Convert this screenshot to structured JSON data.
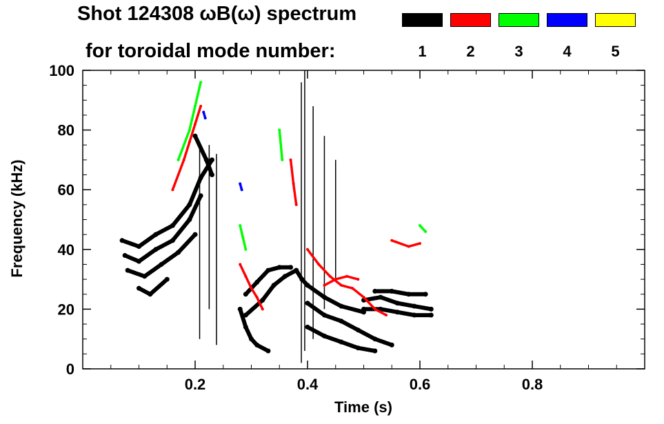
{
  "chart_data": {
    "type": "scatter",
    "title": "Shot 124308 ωB(ω) spectrum",
    "subtitle": "for toroidal mode number:",
    "xlabel": "Time (s)",
    "ylabel": "Frequency (kHz)",
    "xlim": [
      0.0,
      1.0
    ],
    "ylim": [
      0,
      100
    ],
    "xticks": [
      0.2,
      0.4,
      0.6,
      0.8
    ],
    "xtick_labels": [
      "0.2",
      "0.4",
      "0.6",
      "0.8"
    ],
    "yticks": [
      0,
      20,
      40,
      60,
      80,
      100
    ],
    "ytick_labels": [
      "0",
      "20",
      "40",
      "60",
      "80",
      "100"
    ],
    "legend": [
      {
        "label": "1",
        "color": "#000000"
      },
      {
        "label": "2",
        "color": "#ff0000"
      },
      {
        "label": "3",
        "color": "#00ff00"
      },
      {
        "label": "4",
        "color": "#0000ff"
      },
      {
        "label": "5",
        "color": "#ffff00"
      }
    ],
    "series": [
      {
        "name": "n=1",
        "color": "#000000",
        "segments": [
          [
            [
              0.07,
              43
            ],
            [
              0.1,
              41
            ],
            [
              0.13,
              45
            ],
            [
              0.16,
              48
            ],
            [
              0.19,
              55
            ],
            [
              0.21,
              64
            ],
            [
              0.23,
              70
            ]
          ],
          [
            [
              0.075,
              38
            ],
            [
              0.1,
              36
            ],
            [
              0.13,
              40
            ],
            [
              0.16,
              43
            ],
            [
              0.19,
              50
            ],
            [
              0.21,
              58
            ]
          ],
          [
            [
              0.08,
              33
            ],
            [
              0.11,
              31
            ],
            [
              0.14,
              35
            ],
            [
              0.17,
              39
            ],
            [
              0.2,
              45
            ]
          ],
          [
            [
              0.1,
              27
            ],
            [
              0.12,
              25
            ],
            [
              0.15,
              30
            ]
          ],
          [
            [
              0.28,
              20
            ],
            [
              0.29,
              14
            ],
            [
              0.3,
              10
            ],
            [
              0.31,
              8
            ],
            [
              0.33,
              6
            ]
          ],
          [
            [
              0.29,
              25
            ],
            [
              0.31,
              29
            ],
            [
              0.33,
              33
            ],
            [
              0.35,
              34
            ],
            [
              0.37,
              34
            ]
          ],
          [
            [
              0.29,
              18
            ],
            [
              0.32,
              23
            ],
            [
              0.34,
              28
            ],
            [
              0.36,
              31
            ],
            [
              0.38,
              33
            ]
          ],
          [
            [
              0.4,
              22
            ],
            [
              0.43,
              18
            ],
            [
              0.46,
              16
            ],
            [
              0.49,
              13
            ],
            [
              0.52,
              10
            ],
            [
              0.55,
              8
            ]
          ],
          [
            [
              0.4,
              14
            ],
            [
              0.43,
              11
            ],
            [
              0.46,
              9
            ],
            [
              0.49,
              7
            ],
            [
              0.52,
              6
            ]
          ],
          [
            [
              0.4,
              28
            ],
            [
              0.43,
              24
            ],
            [
              0.46,
              21
            ],
            [
              0.5,
              19
            ]
          ],
          [
            [
              0.5,
              23
            ],
            [
              0.53,
              24
            ],
            [
              0.56,
              22
            ],
            [
              0.59,
              21
            ],
            [
              0.62,
              20
            ]
          ],
          [
            [
              0.5,
              20
            ],
            [
              0.53,
              20
            ],
            [
              0.56,
              19
            ],
            [
              0.59,
              18
            ],
            [
              0.62,
              18
            ]
          ],
          [
            [
              0.52,
              26
            ],
            [
              0.55,
              26
            ],
            [
              0.58,
              25
            ],
            [
              0.61,
              25
            ]
          ],
          [
            [
              0.2,
              78
            ],
            [
              0.22,
              70
            ],
            [
              0.23,
              65
            ]
          ],
          [
            [
              0.38,
              33
            ],
            [
              0.39,
              30
            ],
            [
              0.4,
              28
            ]
          ]
        ]
      },
      {
        "name": "n=2",
        "color": "#ff0000",
        "segments": [
          [
            [
              0.16,
              60
            ],
            [
              0.18,
              70
            ],
            [
              0.19,
              76
            ],
            [
              0.2,
              82
            ],
            [
              0.21,
              88
            ]
          ],
          [
            [
              0.28,
              35
            ],
            [
              0.29,
              31
            ],
            [
              0.3,
              27
            ],
            [
              0.31,
              24
            ],
            [
              0.32,
              20
            ]
          ],
          [
            [
              0.4,
              40
            ],
            [
              0.42,
              35
            ],
            [
              0.44,
              31
            ],
            [
              0.46,
              28
            ],
            [
              0.48,
              27
            ],
            [
              0.5,
              24
            ],
            [
              0.52,
              20
            ],
            [
              0.54,
              18
            ]
          ],
          [
            [
              0.43,
              28
            ],
            [
              0.45,
              30
            ],
            [
              0.47,
              31
            ],
            [
              0.49,
              30
            ]
          ],
          [
            [
              0.37,
              70
            ],
            [
              0.375,
              62
            ],
            [
              0.38,
              55
            ]
          ],
          [
            [
              0.55,
              43
            ],
            [
              0.58,
              41
            ],
            [
              0.6,
              42
            ]
          ]
        ]
      },
      {
        "name": "n=3",
        "color": "#00ff00",
        "segments": [
          [
            [
              0.17,
              70
            ],
            [
              0.19,
              80
            ],
            [
              0.2,
              88
            ],
            [
              0.21,
              96
            ]
          ],
          [
            [
              0.28,
              48
            ],
            [
              0.285,
              44
            ],
            [
              0.29,
              40
            ]
          ],
          [
            [
              0.35,
              80
            ],
            [
              0.355,
              70
            ]
          ],
          [
            [
              0.6,
              48
            ],
            [
              0.61,
              46
            ]
          ]
        ]
      },
      {
        "name": "n=4",
        "color": "#0000ff",
        "segments": [
          [
            [
              0.215,
              86
            ],
            [
              0.218,
              84
            ]
          ],
          [
            [
              0.28,
              62
            ],
            [
              0.283,
              60
            ]
          ]
        ]
      },
      {
        "name": "n=5",
        "color": "#ffff00",
        "segments": []
      }
    ],
    "vertical_lines": [
      {
        "x": 0.208,
        "y0": 10,
        "y1": 75
      },
      {
        "x": 0.225,
        "y0": 20,
        "y1": 75
      },
      {
        "x": 0.238,
        "y0": 8,
        "y1": 72
      },
      {
        "x": 0.389,
        "y0": 2,
        "y1": 96
      },
      {
        "x": 0.395,
        "y0": 6,
        "y1": 100
      },
      {
        "x": 0.41,
        "y0": 10,
        "y1": 88
      },
      {
        "x": 0.43,
        "y0": 20,
        "y1": 78
      },
      {
        "x": 0.45,
        "y0": 30,
        "y1": 70
      }
    ]
  }
}
